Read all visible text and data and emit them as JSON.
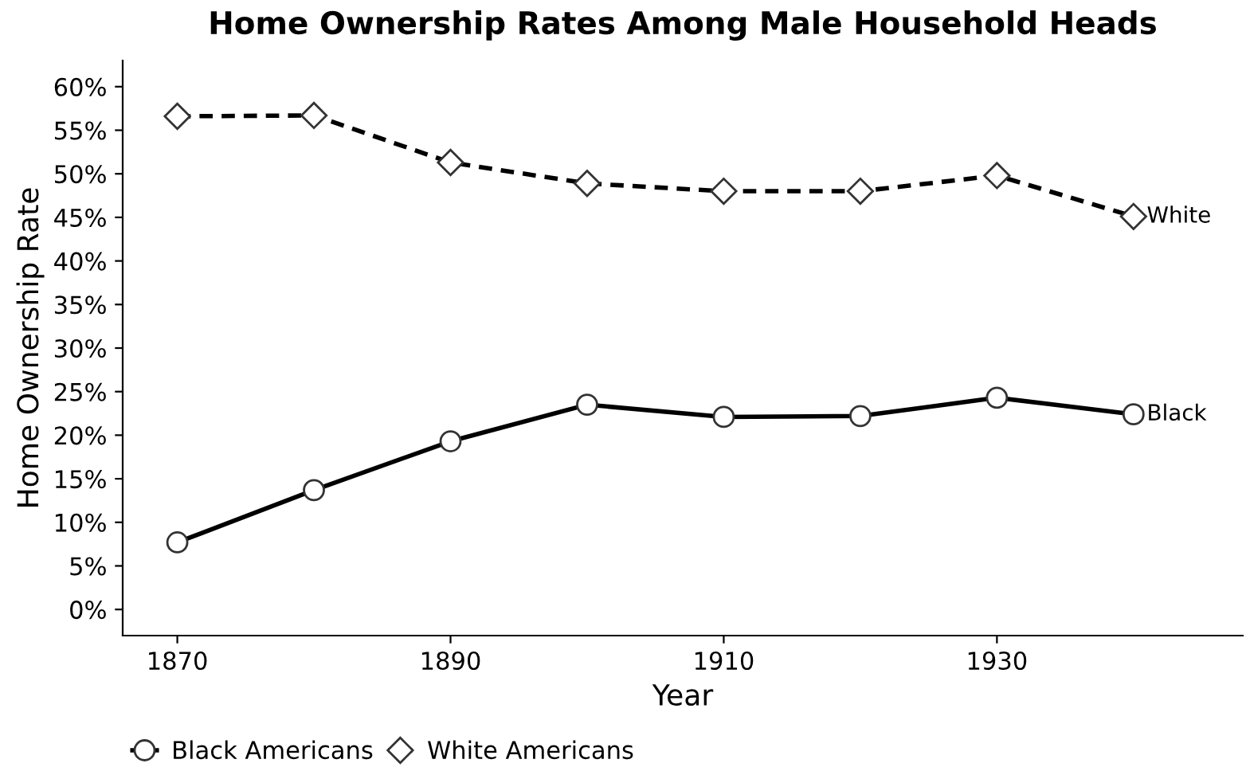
{
  "chart_data": {
    "type": "line",
    "title": "Home Ownership Rates Among Male Household Heads",
    "xlabel": "Year",
    "ylabel": "Home Ownership Rate",
    "x": [
      1870,
      1880,
      1890,
      1900,
      1910,
      1920,
      1930,
      1940
    ],
    "series": [
      {
        "name": "Black Americans",
        "color": "#000000",
        "marker": "circle",
        "line_style": "solid",
        "values": [
          7.7,
          13.7,
          19.3,
          23.5,
          22.1,
          22.2,
          24.3,
          22.4
        ]
      },
      {
        "name": "White Americans",
        "color": "#000000",
        "marker": "diamond",
        "line_style": "dashed",
        "values": [
          56.6,
          56.7,
          51.3,
          48.9,
          48.0,
          48.0,
          49.8,
          45.1
        ]
      }
    ],
    "annotations": [
      {
        "text": "Black",
        "x": 1940,
        "y": 22.4
      },
      {
        "text": "White",
        "x": 1940,
        "y": 45.1
      }
    ],
    "xlim": [
      1866,
      1948
    ],
    "xticks": [
      1870,
      1890,
      1910,
      1930
    ],
    "ylim": [
      -3,
      63
    ],
    "yticks": [
      {
        "value": 0,
        "label": "0%"
      },
      {
        "value": 5,
        "label": "5%"
      },
      {
        "value": 10,
        "label": "10%"
      },
      {
        "value": 15,
        "label": "15%"
      },
      {
        "value": 20,
        "label": "20%"
      },
      {
        "value": 25,
        "label": "25%"
      },
      {
        "value": 30,
        "label": "30%"
      },
      {
        "value": 35,
        "label": "35%"
      },
      {
        "value": 40,
        "label": "40%"
      },
      {
        "value": 45,
        "label": "45%"
      },
      {
        "value": 50,
        "label": "50%"
      },
      {
        "value": 55,
        "label": "55%"
      },
      {
        "value": 60,
        "label": "60%"
      }
    ],
    "grid": false,
    "legend": "bottom"
  }
}
